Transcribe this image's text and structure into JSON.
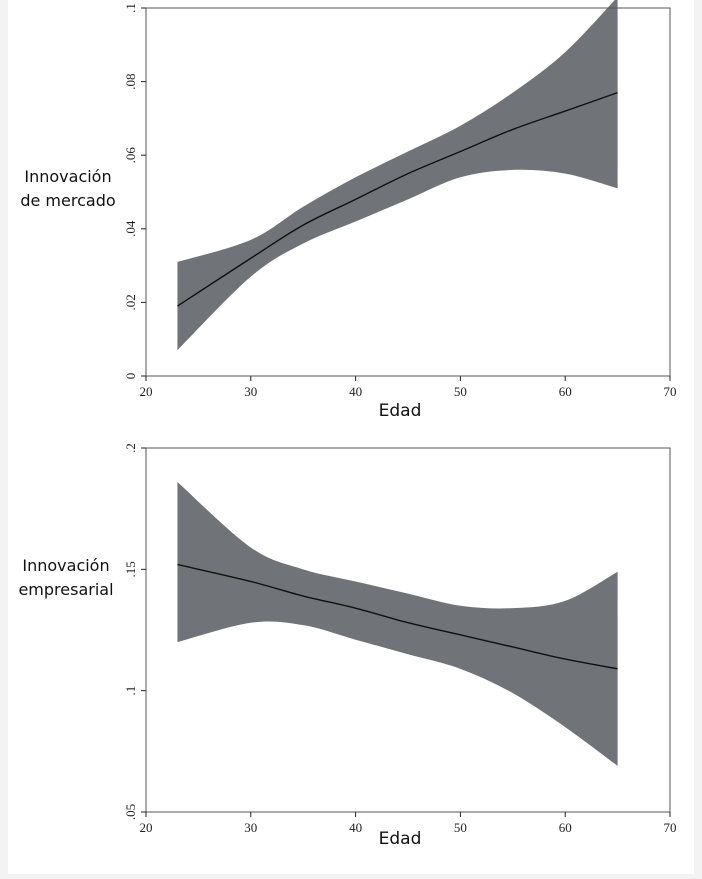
{
  "chart_data": [
    {
      "type": "area",
      "xlabel": "Edad",
      "ylabel": [
        "Innovación",
        "de mercado"
      ],
      "xlim": [
        20,
        70
      ],
      "ylim": [
        0,
        0.1
      ],
      "xticks": [
        20,
        30,
        40,
        50,
        60,
        70
      ],
      "xtick_labels": [
        "20",
        "30",
        "40",
        "50",
        "60",
        "70"
      ],
      "yticks": [
        0,
        0.02,
        0.04,
        0.06,
        0.08,
        0.1
      ],
      "ytick_labels": [
        "0",
        ".02",
        ".04",
        ".06",
        ".08",
        ".1"
      ],
      "grid": false,
      "fit": {
        "x": [
          23,
          30,
          35,
          40,
          45,
          50,
          55,
          60,
          65
        ],
        "y": [
          0.019,
          0.032,
          0.041,
          0.048,
          0.055,
          0.061,
          0.067,
          0.072,
          0.077
        ]
      },
      "ci_upper": {
        "x": [
          23,
          30,
          35,
          40,
          45,
          50,
          55,
          60,
          65
        ],
        "y": [
          0.031,
          0.037,
          0.046,
          0.054,
          0.061,
          0.068,
          0.077,
          0.088,
          0.103
        ]
      },
      "ci_lower": {
        "x": [
          23,
          30,
          35,
          40,
          45,
          50,
          55,
          60,
          65
        ],
        "y": [
          0.007,
          0.027,
          0.036,
          0.042,
          0.048,
          0.054,
          0.056,
          0.055,
          0.051
        ]
      }
    },
    {
      "type": "area",
      "xlabel": "Edad",
      "ylabel": [
        "Innovación",
        "empresarial"
      ],
      "xlim": [
        20,
        70
      ],
      "ylim": [
        0.05,
        0.2
      ],
      "xticks": [
        20,
        30,
        40,
        50,
        60,
        70
      ],
      "xtick_labels": [
        "20",
        "30",
        "40",
        "50",
        "60",
        "70"
      ],
      "yticks": [
        0.05,
        0.1,
        0.15,
        0.2
      ],
      "ytick_labels": [
        ".05",
        ".1",
        ".15",
        ".2"
      ],
      "grid": false,
      "fit": {
        "x": [
          23,
          30,
          35,
          40,
          45,
          50,
          55,
          60,
          65
        ],
        "y": [
          0.152,
          0.145,
          0.139,
          0.134,
          0.128,
          0.123,
          0.118,
          0.113,
          0.109
        ]
      },
      "ci_upper": {
        "x": [
          23,
          30,
          35,
          40,
          45,
          50,
          55,
          60,
          65
        ],
        "y": [
          0.186,
          0.159,
          0.15,
          0.145,
          0.14,
          0.135,
          0.134,
          0.137,
          0.149
        ]
      },
      "ci_lower": {
        "x": [
          23,
          30,
          35,
          40,
          45,
          50,
          55,
          60,
          65
        ],
        "y": [
          0.12,
          0.128,
          0.127,
          0.121,
          0.115,
          0.109,
          0.099,
          0.085,
          0.069
        ]
      }
    }
  ]
}
